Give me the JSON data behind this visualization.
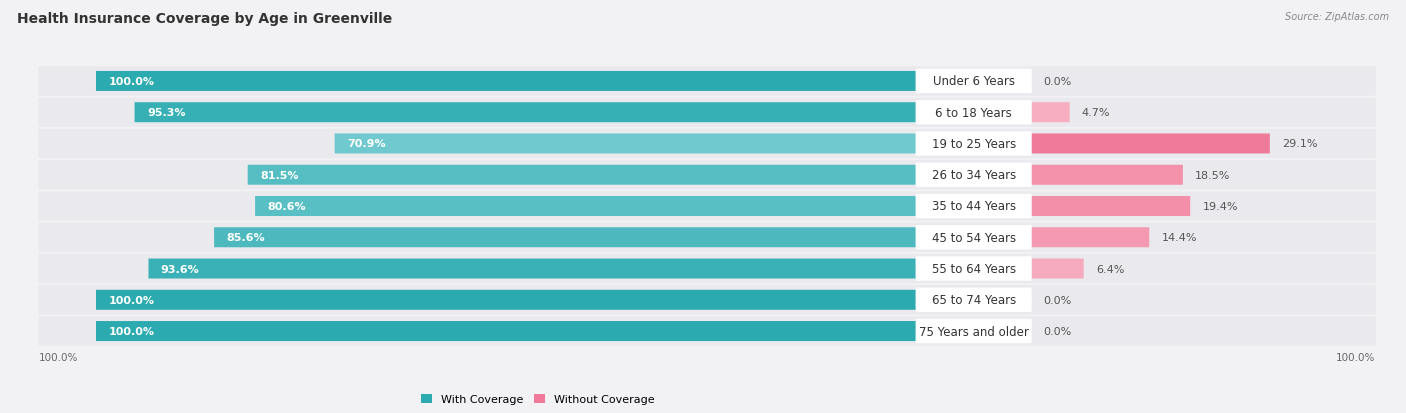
{
  "title": "Health Insurance Coverage by Age in Greenville",
  "source": "Source: ZipAtlas.com",
  "categories": [
    "Under 6 Years",
    "6 to 18 Years",
    "19 to 25 Years",
    "26 to 34 Years",
    "35 to 44 Years",
    "45 to 54 Years",
    "55 to 64 Years",
    "65 to 74 Years",
    "75 Years and older"
  ],
  "with_coverage": [
    100.0,
    95.3,
    70.9,
    81.5,
    80.6,
    85.6,
    93.6,
    100.0,
    100.0
  ],
  "without_coverage": [
    0.0,
    4.7,
    29.1,
    18.5,
    19.4,
    14.4,
    6.4,
    0.0,
    0.0
  ],
  "color_with_dark": "#2BAAB0",
  "color_with_light": "#7DCFD4",
  "color_without": "#F07898",
  "color_without_light": "#F8B8C8",
  "bg_color": "#F2F2F4",
  "bar_bg_color": "#E4E4EA",
  "row_bg_color": "#EAEAEE",
  "title_fontsize": 10,
  "label_fontsize": 8,
  "cat_fontsize": 8.5,
  "tick_fontsize": 7.5,
  "source_fontsize": 7
}
